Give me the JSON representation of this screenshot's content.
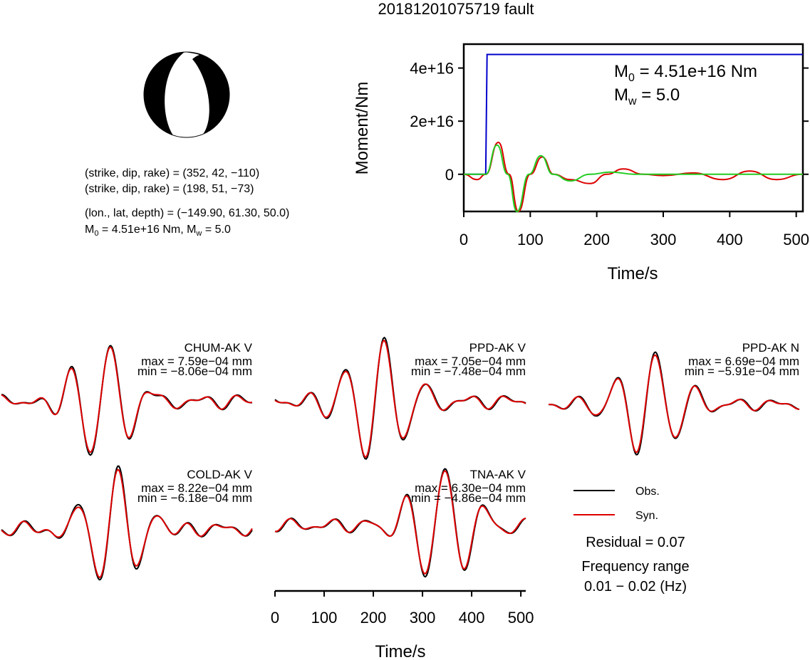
{
  "title": "20181201075719 fault",
  "mechanism": {
    "line1": "(strike, dip, rake) = (352, 42, −110)",
    "line2": "(strike, dip, rake) = (198, 51, −73)",
    "line3": "(lon., lat, depth) = (−149.90, 61.30, 50.0)",
    "m0_prefix": "M",
    "m0_sub": "0",
    "m0_rest": " = 4.51e+16 Nm, M",
    "mw_sub": "w",
    "mw_rest": " = 5.0"
  },
  "moment_chart": {
    "type": "line",
    "ylabel": "Moment/Nm",
    "xlabel": "Time/s",
    "xlim": [
      0,
      510
    ],
    "ylim": [
      -14000000000000000,
      49000000000000000
    ],
    "x_ticks": [
      "0",
      "100",
      "200",
      "300",
      "400",
      "500"
    ],
    "y_ticks": [
      "0",
      "2e+16",
      "4e+16"
    ],
    "annotation_m0": {
      "prefix": "M",
      "sub": "0",
      "rest": " = 4.51e+16 Nm"
    },
    "annotation_mw": {
      "prefix": "M",
      "sub": "w",
      "rest": " = 5.0"
    },
    "colors": {
      "cumulative": "#0000cc",
      "rate_a": "#dd0000",
      "rate_b": "#22cc22"
    }
  },
  "chart_data": [
    {
      "type": "line",
      "title": "20181201075719 fault",
      "xlabel": "Time/s",
      "ylabel": "Moment/Nm",
      "x_range": [
        0,
        510
      ],
      "y_range": [
        -1.4e+16,
        4.9e+16
      ],
      "series": [
        {
          "color": "#0000cc",
          "x": [
            0,
            33,
            35,
            510
          ],
          "y": [
            0,
            0,
            4.51e+16,
            4.51e+16
          ]
        },
        {
          "color": "#dd0000",
          "x": [
            0,
            20,
            33,
            52,
            68,
            82,
            100,
            118,
            135,
            160,
            190,
            215,
            240,
            270,
            300,
            345,
            390,
            430,
            470,
            510
          ],
          "y": [
            0,
            -2000000000000000.0,
            0,
            1.2e+16,
            0,
            -1.4e+16,
            0,
            6500000000000000.0,
            0,
            -2000000000000000.0,
            -3500000000000000.0,
            0,
            2000000000000000.0,
            0,
            -500000000000000.0,
            500000000000000.0,
            -2000000000000000.0,
            1200000000000000.0,
            -2000000000000000.0,
            0
          ]
        },
        {
          "color": "#22cc22",
          "x": [
            0,
            33,
            50,
            66,
            80,
            98,
            116,
            134,
            160,
            190,
            220,
            260,
            300,
            510
          ],
          "y": [
            0,
            0,
            1.1e+16,
            0,
            -1.4e+16,
            0,
            7000000000000000.0,
            0,
            -2500000000000000.0,
            0,
            800000000000000.0,
            0,
            0,
            0
          ]
        }
      ]
    }
  ],
  "stations": [
    {
      "name": "CHUM-AK V",
      "max": "max = 7.59e−04 mm",
      "min": "min = −8.06e−04 mm"
    },
    {
      "name": "PPD-AK V",
      "max": "max = 7.05e−04 mm",
      "min": "min = −7.48e−04 mm"
    },
    {
      "name": "PPD-AK N",
      "max": "max = 6.69e−04 mm",
      "min": "min = −5.91e−04 mm"
    },
    {
      "name": "COLD-AK V",
      "max": "max = 8.22e−04 mm",
      "min": "min = −6.18e−04 mm"
    },
    {
      "name": "TNA-AK V",
      "max": "max = 6.30e−04 mm",
      "min": "min = −4.86e−04 mm"
    }
  ],
  "waveform_axis": {
    "xlabel": "Time/s",
    "ticks": [
      "0",
      "100",
      "200",
      "300",
      "400",
      "500"
    ]
  },
  "legend": {
    "obs_label": "Obs.",
    "syn_label": "Syn.",
    "obs_color": "#000000",
    "syn_color": "#dd0000"
  },
  "residual": "Residual = 0.07",
  "freq_label": "Frequency range",
  "freq_value": "0.01 − 0.02 (Hz)"
}
